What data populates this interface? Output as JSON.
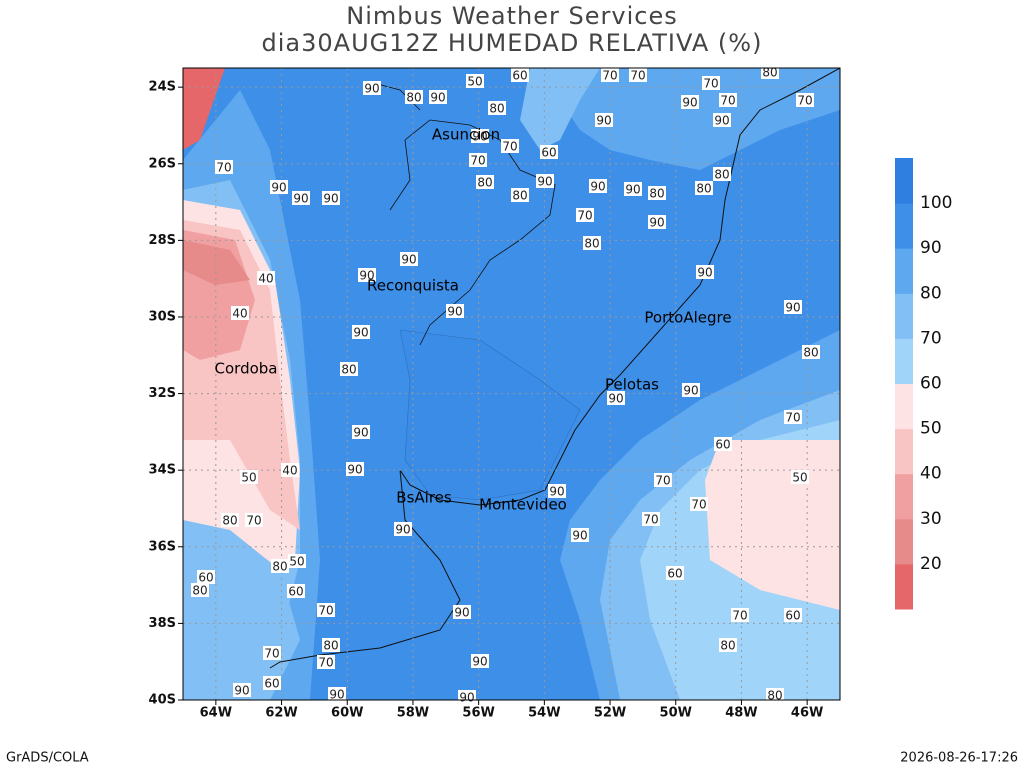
{
  "header": {
    "title": "Nimbus Weather Services",
    "subtitle": "dia30AUG12Z HUMEDAD RELATIVA (%)"
  },
  "map": {
    "lonlim": [
      -65,
      -45
    ],
    "latlim": [
      -40,
      -23.5
    ],
    "xticks": [
      {
        "value": -64,
        "label": "64W"
      },
      {
        "value": -62,
        "label": "62W"
      },
      {
        "value": -60,
        "label": "60W"
      },
      {
        "value": -58,
        "label": "58W"
      },
      {
        "value": -56,
        "label": "56W"
      },
      {
        "value": -54,
        "label": "54W"
      },
      {
        "value": -52,
        "label": "52W"
      },
      {
        "value": -50,
        "label": "50W"
      },
      {
        "value": -48,
        "label": "48W"
      },
      {
        "value": -46,
        "label": "46W"
      }
    ],
    "yticks": [
      {
        "value": -24,
        "label": "24S"
      },
      {
        "value": -26,
        "label": "26S"
      },
      {
        "value": -28,
        "label": "28S"
      },
      {
        "value": -30,
        "label": "30S"
      },
      {
        "value": -32,
        "label": "32S"
      },
      {
        "value": -34,
        "label": "34S"
      },
      {
        "value": -36,
        "label": "36S"
      },
      {
        "value": -38,
        "label": "38S"
      },
      {
        "value": -40,
        "label": "40S"
      }
    ],
    "grid": true,
    "cities": [
      "Asuncion",
      "Reconquista",
      "PortoAlegre",
      "Pelotas",
      "Cordoba",
      "BsAires",
      "Montevideo"
    ],
    "contour_labels": [
      90,
      80,
      90,
      90,
      70,
      80,
      90,
      80,
      90,
      90,
      80,
      80,
      80,
      70,
      90,
      90,
      90,
      90,
      90,
      90,
      90,
      80,
      40,
      40,
      50,
      40,
      90,
      90,
      90,
      90,
      90,
      70,
      70,
      70,
      60,
      70,
      80,
      90,
      90,
      60,
      70,
      80,
      60,
      90,
      90,
      70,
      80,
      70,
      60,
      50,
      80,
      80,
      60,
      80,
      70,
      70,
      60,
      90,
      90,
      90,
      80,
      70,
      70,
      70,
      70,
      80,
      70,
      90,
      90,
      90,
      60,
      70,
      60,
      50,
      80,
      70,
      80,
      90,
      90,
      90,
      50
    ],
    "colorbar": {
      "levels": [
        20,
        30,
        40,
        50,
        60,
        70,
        80,
        90,
        100
      ],
      "colors": [
        "#e6676a",
        "#e68a8a",
        "#f0a0a0",
        "#f9c4c4",
        "#fde3e3",
        "#a0d4f8",
        "#82bff5",
        "#5ea8f0",
        "#3d8fe8",
        "#2f7fe0"
      ]
    }
  },
  "footer": {
    "left": "GrADS/COLA",
    "right": "2026-08-26-17:26"
  }
}
